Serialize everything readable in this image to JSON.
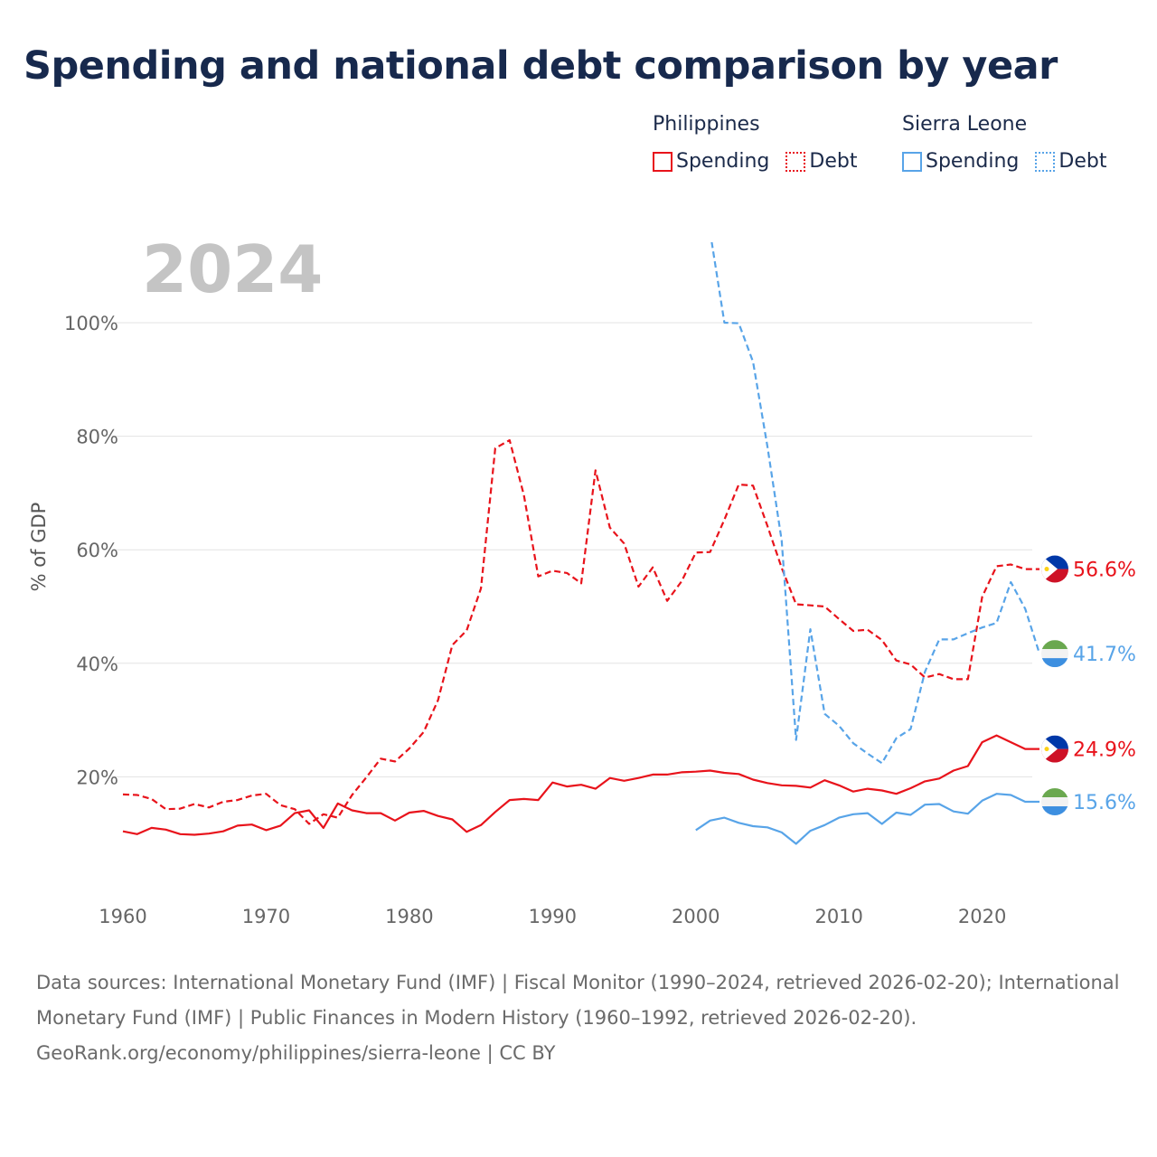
{
  "title": "Spending and national debt comparison by year",
  "legend": {
    "groups": [
      {
        "country": "Philippines",
        "color": "#e8131b",
        "spending_label": "Spending",
        "debt_label": "Debt"
      },
      {
        "country": "Sierra Leone",
        "color": "#58a4e8",
        "spending_label": "Spending",
        "debt_label": "Debt"
      }
    ]
  },
  "chart_data": {
    "type": "line",
    "title": "Spending and national debt comparison by year",
    "watermark_year": "2024",
    "ylabel": "% of GDP",
    "xlabel": "",
    "xlim": [
      1960,
      2024
    ],
    "ylim": [
      0,
      110
    ],
    "x_ticks": [
      1960,
      1970,
      1980,
      1990,
      2000,
      2010,
      2020
    ],
    "x_tick_labels": [
      "1960",
      "1970",
      "1980",
      "1990",
      "2000",
      "2010",
      "2020"
    ],
    "y_ticks": [
      20,
      40,
      60,
      80,
      100
    ],
    "y_tick_labels": [
      "20%",
      "40%",
      "60%",
      "80%",
      "100%"
    ],
    "grid": true,
    "series": [
      {
        "name": "Philippines Debt",
        "country": "Philippines",
        "metric": "Debt",
        "color": "#e8131b",
        "dash": true,
        "end_label": "56.6%",
        "points": [
          [
            1960,
            16.9
          ],
          [
            1961,
            16.8
          ],
          [
            1962,
            16.1
          ],
          [
            1963,
            14.3
          ],
          [
            1964,
            14.4
          ],
          [
            1965,
            15.2
          ],
          [
            1966,
            14.6
          ],
          [
            1967,
            15.6
          ],
          [
            1968,
            15.9
          ],
          [
            1969,
            16.7
          ],
          [
            1970,
            17.0
          ],
          [
            1971,
            15.0
          ],
          [
            1972,
            14.3
          ],
          [
            1973,
            11.7
          ],
          [
            1974,
            13.4
          ],
          [
            1975,
            12.8
          ],
          [
            1976,
            16.8
          ],
          [
            1977,
            19.9
          ],
          [
            1978,
            23.2
          ],
          [
            1979,
            22.7
          ],
          [
            1980,
            25.0
          ],
          [
            1981,
            27.9
          ],
          [
            1982,
            33.5
          ],
          [
            1983,
            43.2
          ],
          [
            1984,
            45.8
          ],
          [
            1985,
            53.2
          ],
          [
            1986,
            77.9
          ],
          [
            1987,
            79.3
          ],
          [
            1988,
            69.6
          ],
          [
            1989,
            55.3
          ],
          [
            1990,
            56.3
          ],
          [
            1991,
            55.9
          ],
          [
            1992,
            54.1
          ],
          [
            1993,
            74.0
          ],
          [
            1994,
            63.9
          ],
          [
            1995,
            61.1
          ],
          [
            1996,
            53.5
          ],
          [
            1997,
            56.9
          ],
          [
            1998,
            51.0
          ],
          [
            1999,
            54.4
          ],
          [
            2000,
            59.5
          ],
          [
            2001,
            59.6
          ],
          [
            2002,
            65.3
          ],
          [
            2003,
            71.5
          ],
          [
            2004,
            71.3
          ],
          [
            2005,
            64.2
          ],
          [
            2006,
            56.8
          ],
          [
            2007,
            50.4
          ],
          [
            2008,
            50.2
          ],
          [
            2009,
            50.0
          ],
          [
            2010,
            47.8
          ],
          [
            2011,
            45.7
          ],
          [
            2012,
            45.9
          ],
          [
            2013,
            44.1
          ],
          [
            2014,
            40.5
          ],
          [
            2015,
            39.8
          ],
          [
            2016,
            37.5
          ],
          [
            2017,
            38.1
          ],
          [
            2018,
            37.2
          ],
          [
            2019,
            37.2
          ],
          [
            2020,
            51.7
          ],
          [
            2021,
            57.1
          ],
          [
            2022,
            57.4
          ],
          [
            2023,
            56.6
          ],
          [
            2024,
            56.6
          ]
        ]
      },
      {
        "name": "Philippines Spending",
        "country": "Philippines",
        "metric": "Spending",
        "color": "#e8131b",
        "dash": false,
        "end_label": "24.9%",
        "points": [
          [
            1960,
            10.4
          ],
          [
            1961,
            9.9
          ],
          [
            1962,
            11.0
          ],
          [
            1963,
            10.7
          ],
          [
            1964,
            9.9
          ],
          [
            1965,
            9.8
          ],
          [
            1966,
            10.0
          ],
          [
            1967,
            10.4
          ],
          [
            1968,
            11.4
          ],
          [
            1969,
            11.6
          ],
          [
            1970,
            10.6
          ],
          [
            1971,
            11.4
          ],
          [
            1972,
            13.6
          ],
          [
            1973,
            14.1
          ],
          [
            1974,
            11.0
          ],
          [
            1975,
            15.3
          ],
          [
            1976,
            14.1
          ],
          [
            1977,
            13.6
          ],
          [
            1978,
            13.6
          ],
          [
            1979,
            12.3
          ],
          [
            1980,
            13.7
          ],
          [
            1981,
            14.0
          ],
          [
            1982,
            13.1
          ],
          [
            1983,
            12.5
          ],
          [
            1984,
            10.3
          ],
          [
            1985,
            11.5
          ],
          [
            1986,
            13.8
          ],
          [
            1987,
            15.9
          ],
          [
            1988,
            16.1
          ],
          [
            1989,
            15.9
          ],
          [
            1990,
            19.0
          ],
          [
            1991,
            18.3
          ],
          [
            1992,
            18.6
          ],
          [
            1993,
            17.9
          ],
          [
            1994,
            19.8
          ],
          [
            1995,
            19.3
          ],
          [
            1996,
            19.8
          ],
          [
            1997,
            20.4
          ],
          [
            1998,
            20.4
          ],
          [
            1999,
            20.8
          ],
          [
            2000,
            20.9
          ],
          [
            2001,
            21.1
          ],
          [
            2002,
            20.7
          ],
          [
            2003,
            20.5
          ],
          [
            2004,
            19.5
          ],
          [
            2005,
            18.9
          ],
          [
            2006,
            18.5
          ],
          [
            2007,
            18.4
          ],
          [
            2008,
            18.1
          ],
          [
            2009,
            19.4
          ],
          [
            2010,
            18.5
          ],
          [
            2011,
            17.4
          ],
          [
            2012,
            17.9
          ],
          [
            2013,
            17.6
          ],
          [
            2014,
            17.0
          ],
          [
            2015,
            18.0
          ],
          [
            2016,
            19.2
          ],
          [
            2017,
            19.7
          ],
          [
            2018,
            21.1
          ],
          [
            2019,
            21.9
          ],
          [
            2020,
            26.1
          ],
          [
            2021,
            27.3
          ],
          [
            2022,
            26.1
          ],
          [
            2023,
            24.9
          ],
          [
            2024,
            24.9
          ]
        ]
      },
      {
        "name": "Sierra Leone Debt",
        "country": "Sierra Leone",
        "metric": "Debt",
        "color": "#58a4e8",
        "dash": true,
        "end_label": "41.7%",
        "points": [
          [
            2001,
            116.0
          ],
          [
            2002,
            100.0
          ],
          [
            2003,
            99.9
          ],
          [
            2004,
            93.1
          ],
          [
            2005,
            78.2
          ],
          [
            2006,
            61.6
          ],
          [
            2007,
            26.5
          ],
          [
            2008,
            46.0
          ],
          [
            2009,
            31.1
          ],
          [
            2010,
            29.0
          ],
          [
            2011,
            25.9
          ],
          [
            2012,
            24.1
          ],
          [
            2013,
            22.4
          ],
          [
            2014,
            26.8
          ],
          [
            2015,
            28.4
          ],
          [
            2016,
            38.5
          ],
          [
            2017,
            44.2
          ],
          [
            2018,
            44.2
          ],
          [
            2019,
            45.3
          ],
          [
            2020,
            46.3
          ],
          [
            2021,
            47.1
          ],
          [
            2022,
            54.3
          ],
          [
            2023,
            49.6
          ],
          [
            2024,
            41.7
          ]
        ]
      },
      {
        "name": "Sierra Leone Spending",
        "country": "Sierra Leone",
        "metric": "Spending",
        "color": "#58a4e8",
        "dash": false,
        "end_label": "15.6%",
        "points": [
          [
            2000,
            10.6
          ],
          [
            2001,
            12.3
          ],
          [
            2002,
            12.8
          ],
          [
            2003,
            11.9
          ],
          [
            2004,
            11.3
          ],
          [
            2005,
            11.1
          ],
          [
            2006,
            10.2
          ],
          [
            2007,
            8.2
          ],
          [
            2008,
            10.5
          ],
          [
            2009,
            11.5
          ],
          [
            2010,
            12.8
          ],
          [
            2011,
            13.4
          ],
          [
            2012,
            13.6
          ],
          [
            2013,
            11.7
          ],
          [
            2014,
            13.7
          ],
          [
            2015,
            13.3
          ],
          [
            2016,
            15.1
          ],
          [
            2017,
            15.2
          ],
          [
            2018,
            13.9
          ],
          [
            2019,
            13.5
          ],
          [
            2020,
            15.8
          ],
          [
            2021,
            17.0
          ],
          [
            2022,
            16.8
          ],
          [
            2023,
            15.6
          ],
          [
            2024,
            15.6
          ]
        ]
      }
    ]
  },
  "footer": {
    "sources": "Data sources: International Monetary Fund (IMF) | Fiscal Monitor (1990–2024, retrieved 2026-02-20); International Monetary Fund (IMF) | Public Finances in Modern History (1960–1992, retrieved 2026-02-20).",
    "attribution": "GeoRank.org/economy/philippines/sierra-leone | CC BY"
  }
}
